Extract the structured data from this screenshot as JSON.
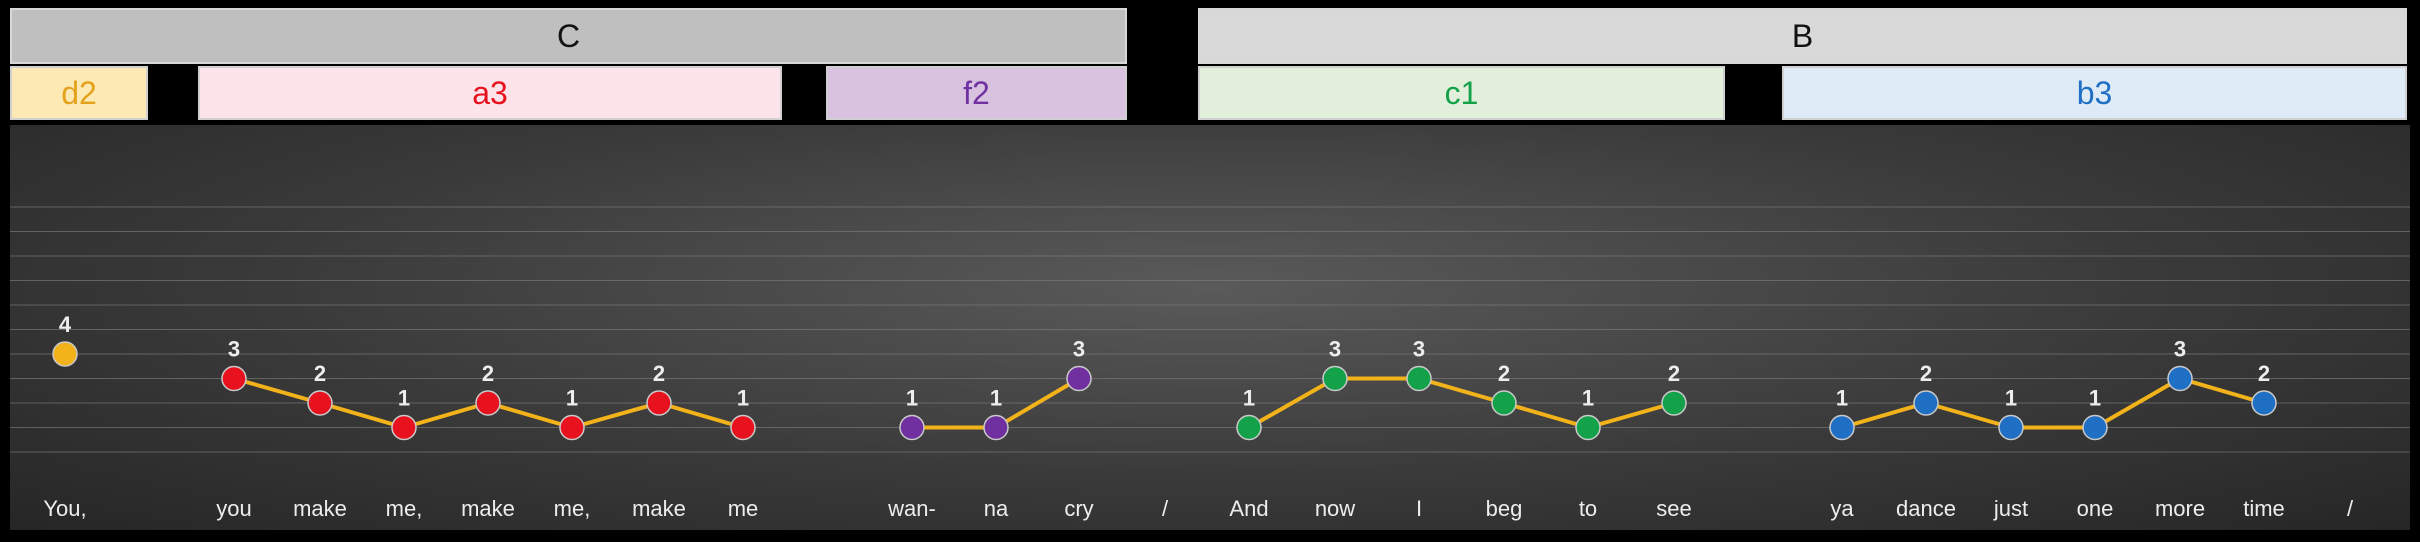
{
  "sections": [
    {
      "label": "C",
      "color": "#bfbfbf"
    },
    {
      "label": "B",
      "color": "#d9d9d9"
    }
  ],
  "segments": [
    {
      "label": "d2",
      "bg": "#fde9b3",
      "fg": "#e3a21a"
    },
    {
      "label": "a3",
      "bg": "#fde4ea",
      "fg": "#e8121e"
    },
    {
      "label": "f2",
      "bg": "#d9c2e0",
      "fg": "#7030a0"
    },
    {
      "label": "c1",
      "bg": "#e2efda",
      "fg": "#13a24a"
    },
    {
      "label": "b3",
      "bg": "#deebf7",
      "fg": "#1f6fc4"
    }
  ],
  "chart_data": {
    "type": "line",
    "ylim": [
      0,
      10
    ],
    "grid": true,
    "categories": [
      "You,",
      "you",
      "make",
      "me,",
      "make",
      "me,",
      "make",
      "me",
      "wan-",
      "na",
      "cry",
      "/",
      "And",
      "now",
      "I",
      "beg",
      "to",
      "see",
      "ya",
      "dance",
      "just",
      "one",
      "more",
      "time",
      "/"
    ],
    "series": [
      {
        "color": "#f2b21a",
        "points": [
          {
            "x": 0,
            "y": 4
          }
        ]
      },
      {
        "color": "#e8121e",
        "points": [
          {
            "x": 1,
            "y": 3
          },
          {
            "x": 2,
            "y": 2
          },
          {
            "x": 3,
            "y": 1
          },
          {
            "x": 4,
            "y": 2
          },
          {
            "x": 5,
            "y": 1
          },
          {
            "x": 6,
            "y": 2
          },
          {
            "x": 7,
            "y": 1
          }
        ]
      },
      {
        "color": "#7030a0",
        "points": [
          {
            "x": 8,
            "y": 1
          },
          {
            "x": 9,
            "y": 1
          },
          {
            "x": 10,
            "y": 3
          }
        ]
      },
      {
        "color": "#13a24a",
        "points": [
          {
            "x": 12,
            "y": 1
          },
          {
            "x": 13,
            "y": 3
          },
          {
            "x": 14,
            "y": 3
          },
          {
            "x": 15,
            "y": 2
          },
          {
            "x": 16,
            "y": 1
          },
          {
            "x": 17,
            "y": 2
          }
        ]
      },
      {
        "color": "#1f6fc4",
        "points": [
          {
            "x": 18,
            "y": 1
          },
          {
            "x": 19,
            "y": 2
          },
          {
            "x": 20,
            "y": 1
          },
          {
            "x": 21,
            "y": 1
          },
          {
            "x": 22,
            "y": 3
          },
          {
            "x": 23,
            "y": 2
          }
        ]
      }
    ],
    "line_color": "#f2b21a",
    "label_color": "#ededed"
  }
}
